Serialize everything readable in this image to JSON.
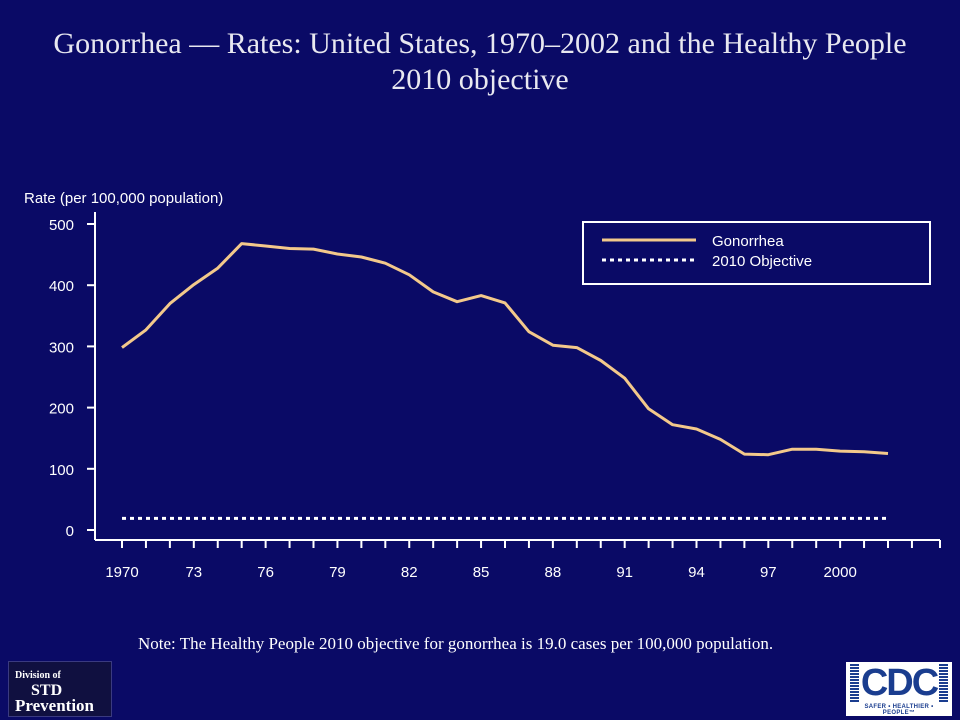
{
  "header": {
    "title": "Gonorrhea — Rates: United States, 1970–2002 and the Healthy People 2010 objective"
  },
  "note": "Note: The Healthy People 2010 objective for gonorrhea is 19.0 cases per 100,000 population.",
  "logos": {
    "std": {
      "line1": "Division of",
      "line2": "STD",
      "line3": "Prevention"
    },
    "cdc": {
      "mark": "CDC",
      "tagline": "SAFER • HEALTHIER • PEOPLE™"
    }
  },
  "colors": {
    "background": "#0a0a66",
    "series": "#f3c98b",
    "objective": "#ffffff",
    "axis": "#ffffff"
  },
  "chart_data": {
    "type": "line",
    "ylabel": "Rate (per 100,000 population)",
    "ylim": [
      0,
      500
    ],
    "yticks": [
      0,
      100,
      200,
      300,
      400,
      500
    ],
    "xlim": [
      1970,
      2003
    ],
    "xticks": [
      {
        "value": 1970,
        "label": "1970"
      },
      {
        "value": 1973,
        "label": "73"
      },
      {
        "value": 1976,
        "label": "76"
      },
      {
        "value": 1979,
        "label": "79"
      },
      {
        "value": 1982,
        "label": "82"
      },
      {
        "value": 1985,
        "label": "85"
      },
      {
        "value": 1988,
        "label": "88"
      },
      {
        "value": 1991,
        "label": "91"
      },
      {
        "value": 1994,
        "label": "94"
      },
      {
        "value": 1997,
        "label": "97"
      },
      {
        "value": 2000,
        "label": "2000"
      }
    ],
    "legend_position": "top-right",
    "series": [
      {
        "name": "Gonorrhea",
        "style": "solid",
        "x": [
          1970,
          1971,
          1972,
          1973,
          1974,
          1975,
          1976,
          1977,
          1978,
          1979,
          1980,
          1981,
          1982,
          1983,
          1984,
          1985,
          1986,
          1987,
          1988,
          1989,
          1990,
          1991,
          1992,
          1993,
          1994,
          1995,
          1996,
          1997,
          1998,
          1999,
          2000,
          2001,
          2002
        ],
        "values": [
          298,
          327,
          370,
          401,
          428,
          468,
          464,
          460,
          459,
          451,
          446,
          436,
          417,
          389,
          373,
          383,
          371,
          324,
          302,
          298,
          277,
          248,
          198,
          172,
          165,
          148,
          124,
          123,
          132,
          132,
          129,
          128,
          125
        ]
      },
      {
        "name": "2010 Objective",
        "style": "dotted",
        "x": [
          1970,
          2002
        ],
        "values": [
          19,
          19
        ]
      }
    ]
  }
}
